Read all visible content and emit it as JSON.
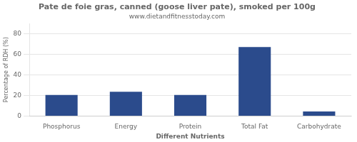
{
  "chart_data": {
    "type": "bar",
    "title": "Pate de foie gras, canned (goose liver pate), smoked per 100g",
    "subtitle": "www.dietandfitnesstoday.com",
    "xlabel": "Different Nutrients",
    "ylabel": "Percentage of RDH (%)",
    "categories": [
      "Phosphorus",
      "Energy",
      "Protein",
      "Total Fat",
      "Carbohydrate"
    ],
    "values": [
      20.5,
      23.5,
      20.5,
      67.0,
      4.5
    ],
    "color": "#2B4B8C",
    "ylim": [
      0,
      90
    ],
    "yticks": [
      0,
      20,
      40,
      60,
      80
    ],
    "grid": true
  }
}
